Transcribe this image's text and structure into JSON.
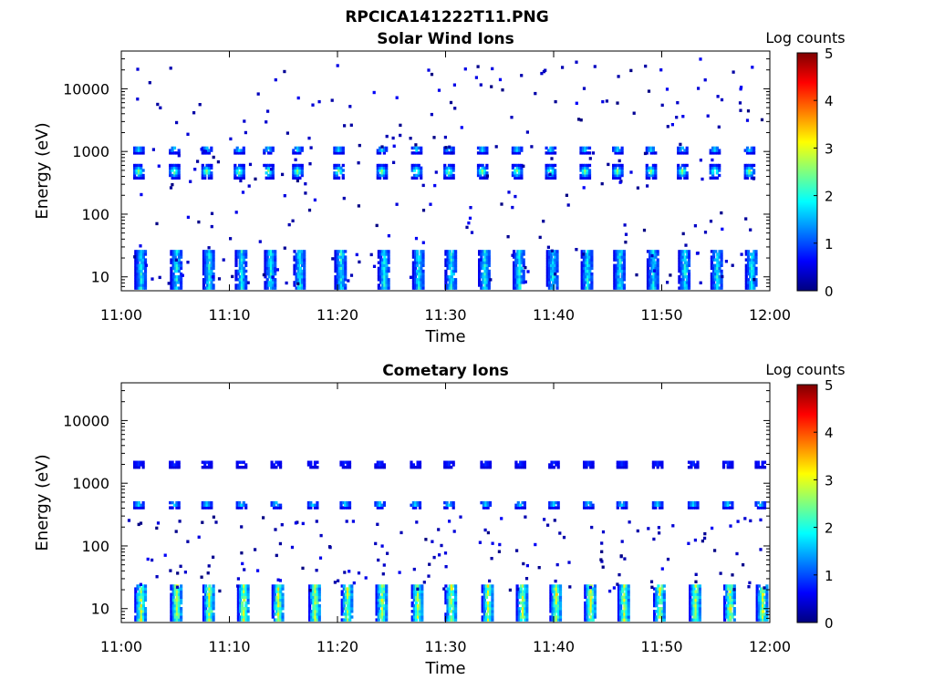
{
  "figure_title": "RPCICA141222T11.PNG",
  "colors": {
    "colormap": [
      "#00007f",
      "#0000ff",
      "#007fff",
      "#00ffff",
      "#7fff7f",
      "#ffff00",
      "#ff7f00",
      "#ff0000",
      "#7f0000"
    ]
  },
  "chart_data": [
    {
      "type": "heatmap",
      "title": "Solar Wind Ions",
      "xlabel": "Time",
      "ylabel": "Energy (eV)",
      "x_range": [
        "11:00",
        "12:00"
      ],
      "x_ticks": [
        "11:00",
        "11:10",
        "11:20",
        "11:30",
        "11:40",
        "11:50",
        "12:00"
      ],
      "y_scale": "log",
      "y_range_eV": [
        6,
        40000
      ],
      "y_ticks": [
        {
          "value": 10,
          "label": "10"
        },
        {
          "value": 100,
          "label": "100"
        },
        {
          "value": 1000,
          "label": "1000"
        },
        {
          "value": 10000,
          "label": "10000"
        }
      ],
      "colorbar": {
        "label": "Log counts",
        "range": [
          0,
          5
        ],
        "ticks": [
          "0",
          "1",
          "2",
          "3",
          "4",
          "5"
        ]
      },
      "sweep_times_min": [
        1.5,
        4.8,
        7.8,
        10.8,
        13.5,
        16.2,
        20.0,
        24.0,
        27.2,
        30.2,
        33.3,
        36.5,
        39.6,
        42.8,
        45.8,
        48.9,
        51.8,
        54.8,
        58.0
      ],
      "components": [
        {
          "name": "",
          "energy_min_eV": 400,
          "energy_max_eV": 650,
          "peak_log_counts": 2.5
        },
        {
          "name": "",
          "energy_min_eV": 1000,
          "energy_max_eV": 1300,
          "peak_log_counts": 1.8
        },
        {
          "name": "",
          "energy_min_eV": 7,
          "energy_max_eV": 28,
          "peak_log_counts": 1.9
        }
      ],
      "grid": false
    },
    {
      "type": "heatmap",
      "title": "Cometary Ions",
      "xlabel": "Time",
      "ylabel": "Energy (eV)",
      "x_range": [
        "11:00",
        "12:00"
      ],
      "x_ticks": [
        "11:00",
        "11:10",
        "11:20",
        "11:30",
        "11:40",
        "11:50",
        "12:00"
      ],
      "y_scale": "log",
      "y_range_eV": [
        6,
        40000
      ],
      "y_ticks": [
        {
          "value": 10,
          "label": "10"
        },
        {
          "value": 100,
          "label": "100"
        },
        {
          "value": 1000,
          "label": "1000"
        },
        {
          "value": 10000,
          "label": "10000"
        }
      ],
      "colorbar": {
        "label": "Log counts",
        "range": [
          0,
          5
        ],
        "ticks": [
          "0",
          "1",
          "2",
          "3",
          "4",
          "5"
        ]
      },
      "sweep_times_min": [
        1.5,
        4.8,
        7.8,
        11.0,
        14.2,
        17.6,
        20.6,
        23.8,
        27.1,
        30.2,
        33.6,
        36.8,
        39.9,
        43.1,
        46.2,
        49.5,
        52.8,
        56.0,
        59.0
      ],
      "components": [
        {
          "name": "",
          "energy_min_eV": 7,
          "energy_max_eV": 25,
          "peak_log_counts": 3.0
        },
        {
          "name": "",
          "energy_min_eV": 430,
          "energy_max_eV": 560,
          "peak_log_counts": 1.8
        },
        {
          "name": "",
          "energy_min_eV": 1900,
          "energy_max_eV": 2500,
          "peak_log_counts": 0.6
        }
      ],
      "grid": false
    }
  ]
}
